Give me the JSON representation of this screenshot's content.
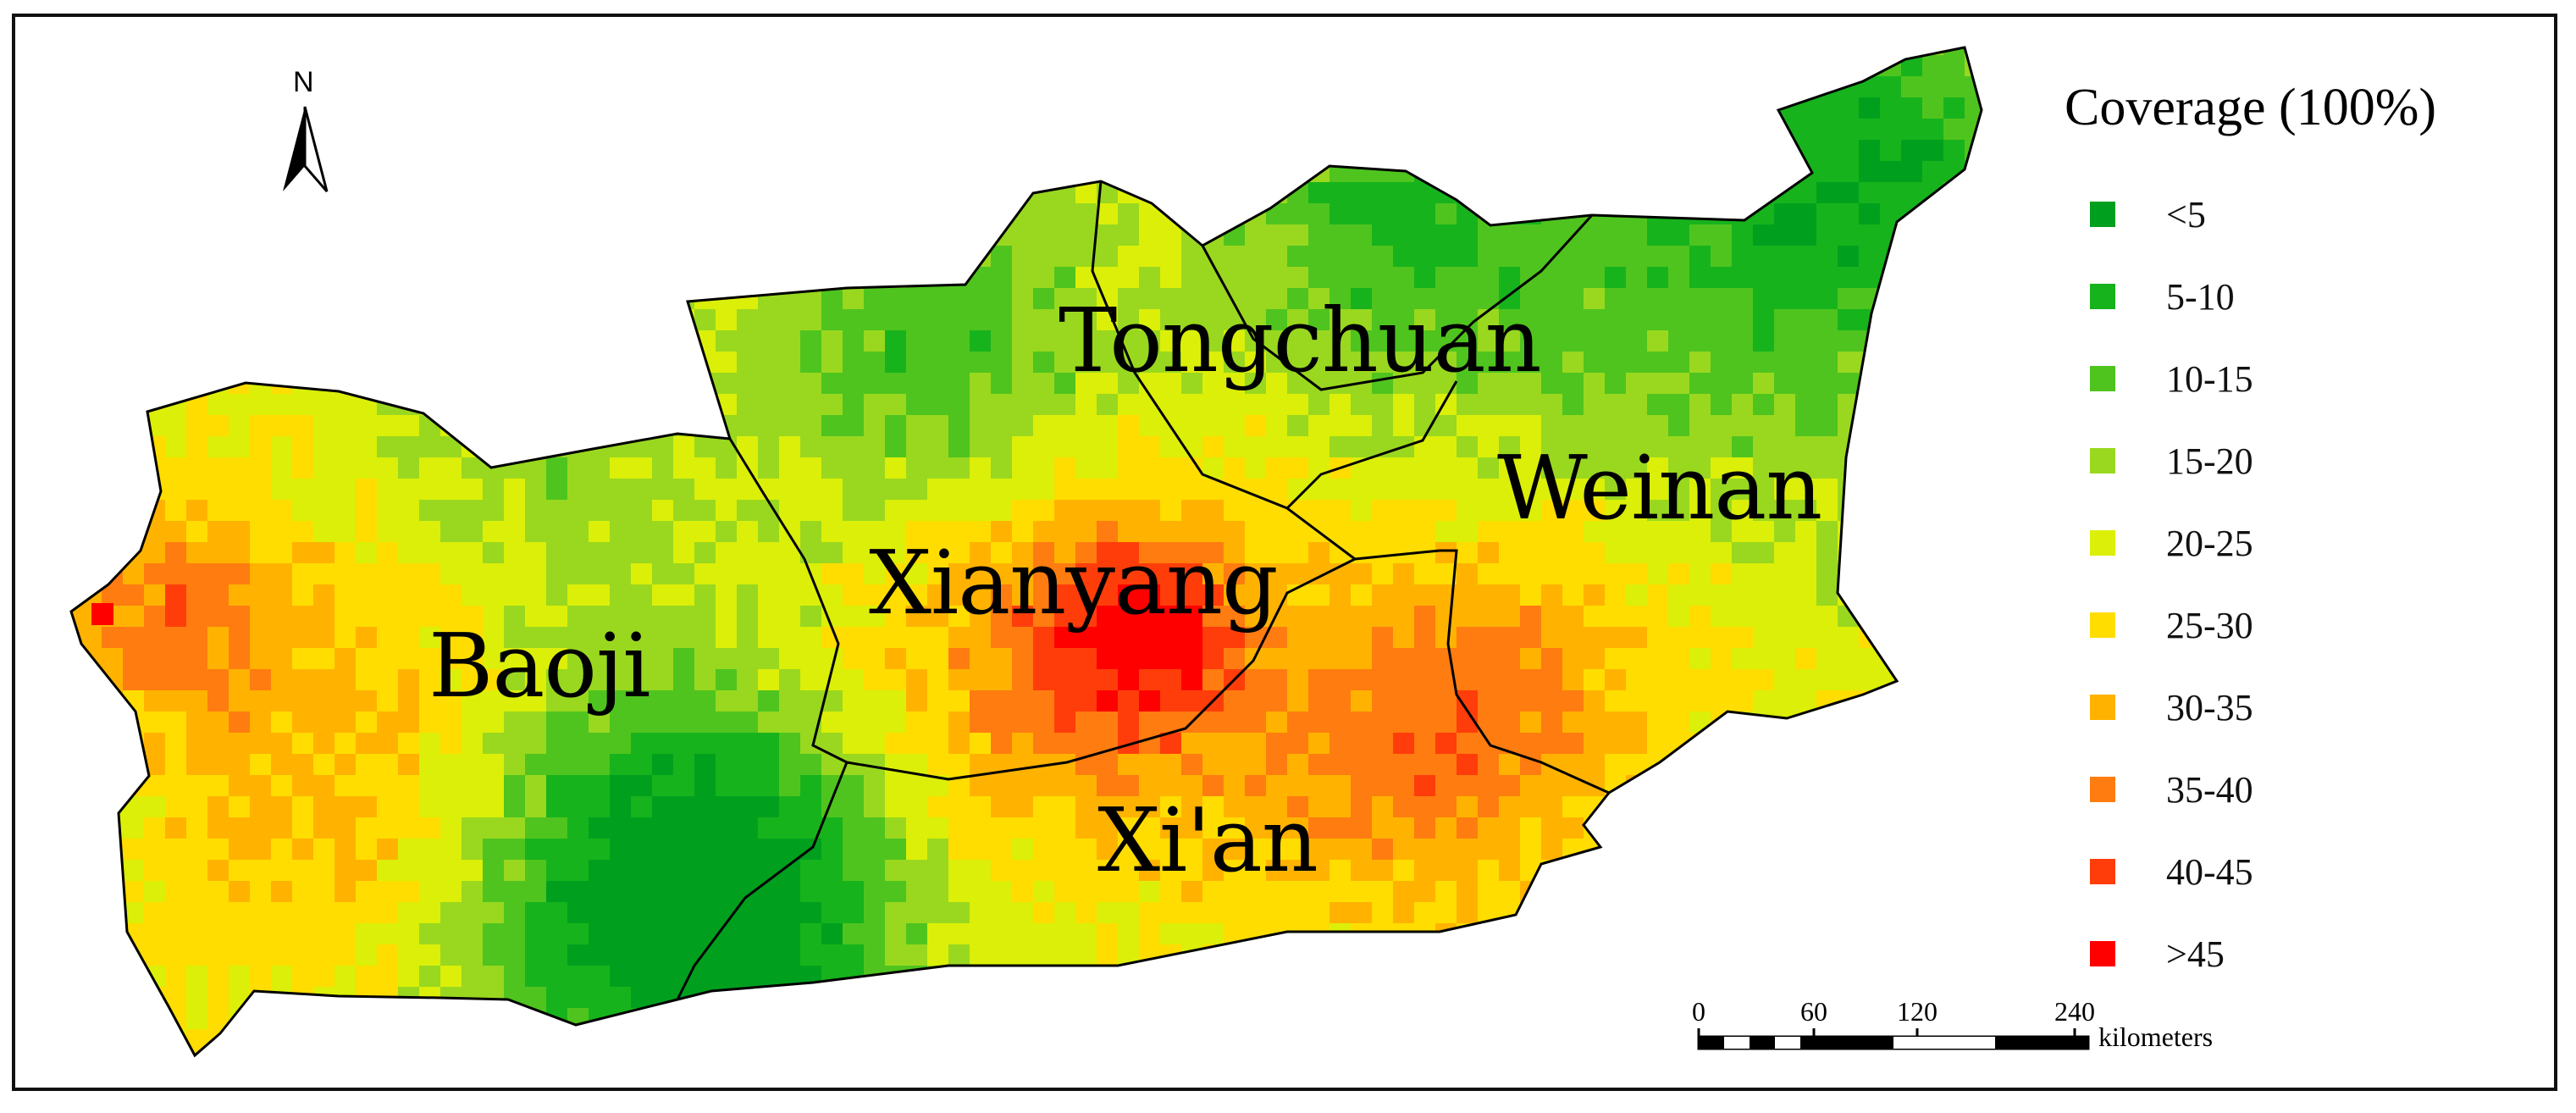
{
  "legend": {
    "title": "Coverage (100%)",
    "classes": [
      {
        "label": "<5",
        "color": "#00a01e"
      },
      {
        "label": "5-10",
        "color": "#17b31c"
      },
      {
        "label": "10-15",
        "color": "#4fc41e"
      },
      {
        "label": "15-20",
        "color": "#99d81f"
      },
      {
        "label": "20-25",
        "color": "#dcef08"
      },
      {
        "label": "25-30",
        "color": "#ffdd00"
      },
      {
        "label": "30-35",
        "color": "#ffb300"
      },
      {
        "label": "35-40",
        "color": "#ff7c10"
      },
      {
        "label": "40-45",
        "color": "#ff3d0a"
      },
      {
        "label": ">45",
        "color": "#ff0000"
      }
    ]
  },
  "regions": [
    {
      "name": "Tongchuan"
    },
    {
      "name": "Weinan"
    },
    {
      "name": "Xianyang"
    },
    {
      "name": "Baoji"
    },
    {
      "name": "Xi'an"
    }
  ],
  "north_arrow": {
    "label": "N"
  },
  "scale_bar": {
    "ticks": [
      "0",
      "60",
      "120",
      "240"
    ],
    "unit": "kilometers"
  }
}
